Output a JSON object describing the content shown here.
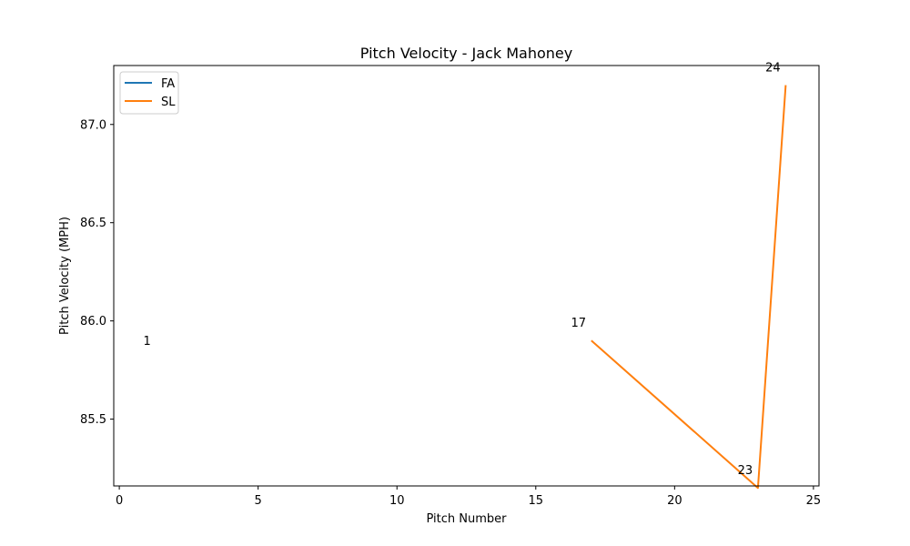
{
  "chart_data": {
    "type": "line",
    "title": "Pitch Velocity - Jack Mahoney",
    "xlabel": "Pitch Number",
    "ylabel": "Pitch Velocity (MPH)",
    "xlim": [
      -0.2,
      25.2
    ],
    "ylim": [
      85.16,
      87.3
    ],
    "xticks": [
      0,
      5,
      10,
      15,
      20,
      25
    ],
    "xtick_labels": [
      "0",
      "5",
      "10",
      "15",
      "20",
      "25"
    ],
    "yticks": [
      85.5,
      86.0,
      86.5,
      87.0
    ],
    "ytick_labels": [
      "85.5",
      "86.0",
      "86.5",
      "87.0"
    ],
    "grid": false,
    "legend_position": "upper-left",
    "series": [
      {
        "name": "FA",
        "color": "#1f77b4",
        "x": [
          1
        ],
        "y": [
          85.9
        ]
      },
      {
        "name": "SL",
        "color": "#ff7f0e",
        "x": [
          17,
          23,
          24
        ],
        "y": [
          85.9,
          85.15,
          87.2
        ]
      }
    ],
    "annotations": [
      {
        "text": "1",
        "x": 1,
        "y": 85.9
      },
      {
        "text": "17",
        "x": 17,
        "y": 85.9
      },
      {
        "text": "23",
        "x": 23,
        "y": 85.15
      },
      {
        "text": "24",
        "x": 24,
        "y": 87.2
      }
    ]
  }
}
